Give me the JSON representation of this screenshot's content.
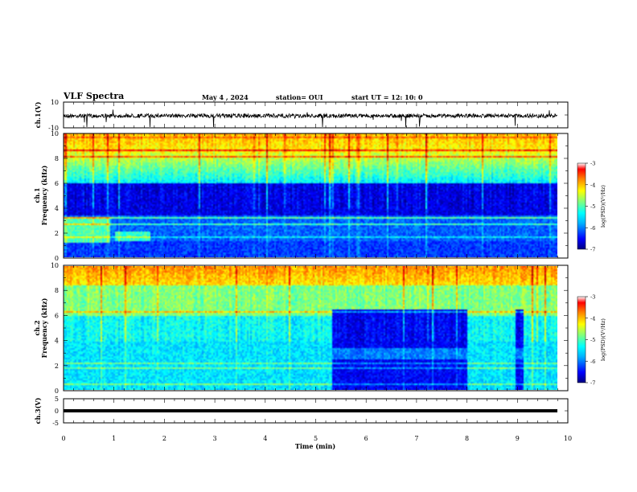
{
  "header": {
    "title": "VLF Spectra",
    "date": "May 4  , 2024",
    "station": "station= OUI",
    "start": "start  UT  =   12: 10: 0"
  },
  "colors": {
    "colormap": [
      "#00007f",
      "#0000ff",
      "#007fff",
      "#00ffff",
      "#7fff7f",
      "#ffff00",
      "#ff7f00",
      "#ff0000",
      "#7f0000"
    ],
    "axis": "#000000",
    "background": "#ffffff"
  },
  "chart_data": [
    {
      "type": "line",
      "ylabel": "ch.1(V)",
      "ylim": [
        -10,
        10
      ],
      "y_ticks": [
        "10",
        "-10"
      ],
      "xlim": [
        0,
        10
      ],
      "baseline_y": 0,
      "note_values": "noisy waveform centred near 0 V with sparse spikes"
    },
    {
      "type": "heatmap",
      "ylabel": "ch.1\nFrequency (kHz)",
      "ylim": [
        0,
        10
      ],
      "y_ticks": [
        "0",
        "2",
        "4",
        "6",
        "8",
        "10"
      ],
      "xlim": [
        0,
        10
      ],
      "data_end_min": 9.8,
      "colorbar_label": "log(PSD)(V²/Hz)",
      "colorbar_ticks": [
        "-3",
        "-4",
        "-5",
        "-6",
        "-7"
      ],
      "colorbar_range": [
        -7,
        -3
      ]
    },
    {
      "type": "heatmap",
      "ylabel": "ch.2\nFrequency (kHz)",
      "ylim": [
        0,
        10
      ],
      "y_ticks": [
        "0",
        "2",
        "4",
        "6",
        "8",
        "10"
      ],
      "xlim": [
        0,
        10
      ],
      "data_end_min": 9.8,
      "colorbar_label": "log(PSD)(V²/Hz)",
      "colorbar_ticks": [
        "-3",
        "-4",
        "-5",
        "-6",
        "-7"
      ],
      "colorbar_range": [
        -7,
        -3
      ]
    },
    {
      "type": "line",
      "ylabel": "ch.3(V)",
      "ylim": [
        -5,
        5
      ],
      "y_ticks": [
        "5",
        "0",
        "-5"
      ],
      "xlim": [
        0,
        10
      ],
      "level_y": -0.5
    }
  ],
  "xaxis": {
    "label": "Time (min)",
    "ticks": [
      "0",
      "1",
      "2",
      "3",
      "4",
      "5",
      "6",
      "7",
      "8",
      "9",
      "10"
    ]
  },
  "ylabels": {
    "ch1_wave": "ch.1(V)",
    "ch1_a": "ch.1",
    "ch1_b": "Frequency (kHz)",
    "ch2_a": "ch.2",
    "ch2_b": "Frequency (kHz)",
    "ch3_wave": "ch.3(V)",
    "colorbar": "log(PSD)(V²/Hz)"
  }
}
